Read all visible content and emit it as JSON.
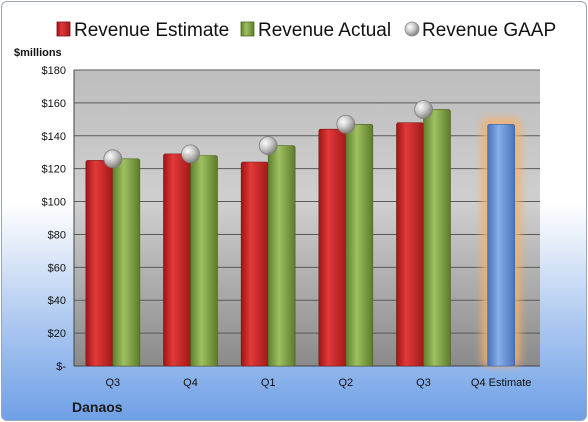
{
  "chart_data": {
    "type": "bar",
    "unit_label": "$millions",
    "company": "Danaos",
    "categories": [
      "Q3",
      "Q4",
      "Q1",
      "Q2",
      "Q3",
      "Q4 Estimate"
    ],
    "ylim": [
      0,
      180
    ],
    "yticks": [
      0,
      20,
      40,
      60,
      80,
      100,
      120,
      140,
      160,
      180
    ],
    "ytick_labels": [
      "$-",
      "$20",
      "$40",
      "$60",
      "$80",
      "$100",
      "$120",
      "$140",
      "$160",
      "$180"
    ],
    "grid": true,
    "legend_position": "top",
    "series": [
      {
        "name": "Revenue Estimate",
        "type": "bar",
        "color": "#d42a2a",
        "values": [
          125,
          129,
          124,
          144,
          148,
          null
        ]
      },
      {
        "name": "Revenue Actual",
        "type": "bar",
        "color": "#8aab4d",
        "values": [
          126,
          128,
          134,
          147,
          156,
          null
        ]
      },
      {
        "name": "Revenue GAAP",
        "type": "marker",
        "color": "#c8c8c8",
        "values": [
          126,
          129,
          134,
          147,
          156,
          null
        ]
      }
    ],
    "forecast": {
      "category": "Q4 Estimate",
      "value": 147,
      "color": "#6b95d6",
      "glow": "#f5b06a"
    }
  }
}
